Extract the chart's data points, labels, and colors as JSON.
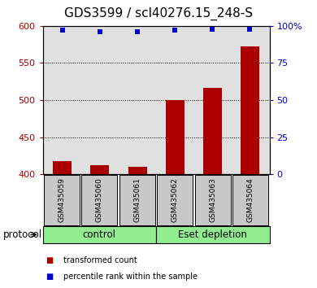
{
  "title": "GDS3599 / scl40276.15_248-S",
  "categories": [
    "GSM435059",
    "GSM435060",
    "GSM435061",
    "GSM435062",
    "GSM435063",
    "GSM435064"
  ],
  "bar_values": [
    418,
    412,
    410,
    500,
    517,
    572
  ],
  "blue_values": [
    97,
    96,
    96,
    97,
    98,
    98
  ],
  "bar_color": "#aa0000",
  "blue_color": "#0000cc",
  "ylim_left": [
    400,
    600
  ],
  "ylim_right": [
    0,
    100
  ],
  "yticks_left": [
    400,
    450,
    500,
    550,
    600
  ],
  "yticks_right": [
    0,
    25,
    50,
    75,
    100
  ],
  "ytick_labels_right": [
    "0",
    "25",
    "50",
    "75",
    "100%"
  ],
  "bar_width": 0.5,
  "grid_color": "black",
  "plot_bg_color": "#e0e0e0",
  "bar_bottom": 400,
  "title_fontsize": 11,
  "protocol_label": "protocol",
  "green_color": "#90EE90",
  "gray_box_color": "#c8c8c8"
}
